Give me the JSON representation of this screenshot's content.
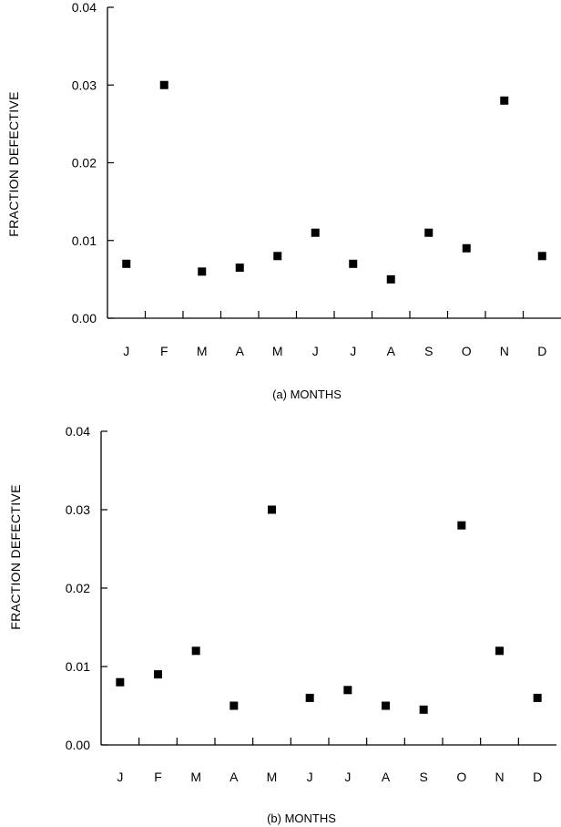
{
  "chart_data": [
    {
      "type": "scatter",
      "xlabel": "(a)  MONTHS",
      "ylabel": "FRACTION DEFECTIVE",
      "categories": [
        "J",
        "F",
        "M",
        "A",
        "M",
        "J",
        "J",
        "A",
        "S",
        "O",
        "N",
        "D"
      ],
      "values": [
        0.007,
        0.03,
        0.006,
        0.0065,
        0.008,
        0.011,
        0.007,
        0.005,
        0.011,
        0.009,
        0.028,
        0.008
      ],
      "ylim": [
        0,
        0.04
      ],
      "yticks": [
        "0.00",
        "0.01",
        "0.02",
        "0.03",
        "0.04"
      ],
      "grid": false,
      "marker_color": "#000000"
    },
    {
      "type": "scatter",
      "xlabel": "(b)  MONTHS",
      "ylabel": "FRACTION DEFECTIVE",
      "categories": [
        "J",
        "F",
        "M",
        "A",
        "M",
        "J",
        "J",
        "A",
        "S",
        "O",
        "N",
        "D"
      ],
      "values": [
        0.008,
        0.009,
        0.012,
        0.005,
        0.03,
        0.006,
        0.007,
        0.005,
        0.0045,
        0.028,
        0.012,
        0.006
      ],
      "ylim": [
        0,
        0.04
      ],
      "yticks": [
        "0.00",
        "0.01",
        "0.02",
        "0.03",
        "0.04"
      ],
      "grid": false,
      "marker_color": "#000000"
    }
  ]
}
